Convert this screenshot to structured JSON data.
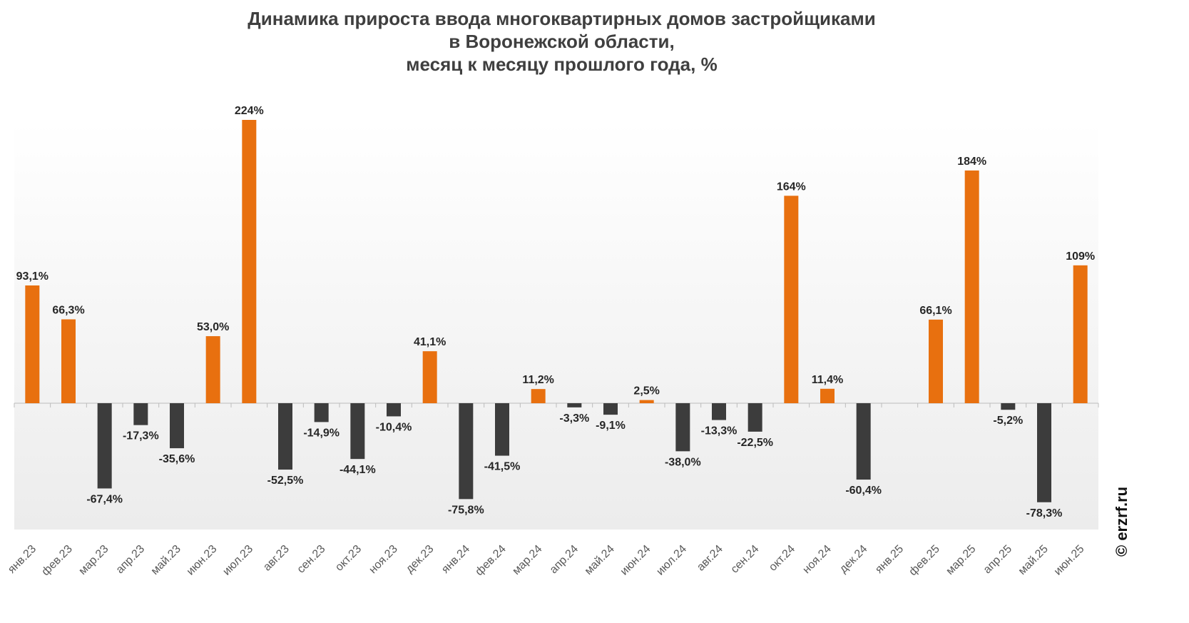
{
  "chart_data": {
    "type": "bar",
    "title_lines": [
      "Динамика прироста ввода многоквартирных домов застройщиками",
      "в Воронежской области,",
      "месяц к месяцу прошлого года, %"
    ],
    "categories": [
      "янв.23",
      "фев.23",
      "мар.23",
      "апр.23",
      "май.23",
      "июн.23",
      "июл.23",
      "авг.23",
      "сен.23",
      "окт.23",
      "ноя.23",
      "дек.23",
      "янв.24",
      "фев.24",
      "мар.24",
      "апр.24",
      "май.24",
      "июн.24",
      "июл.24",
      "авг.24",
      "сен.24",
      "окт.24",
      "ноя.24",
      "дек.24",
      "янв.25",
      "фев.25",
      "мар.25",
      "апр.25",
      "май.25",
      "июн.25"
    ],
    "values": [
      93.1,
      66.3,
      -67.4,
      -17.3,
      -35.6,
      53.0,
      224,
      -52.5,
      -14.9,
      -44.1,
      -10.4,
      41.1,
      -75.8,
      -41.5,
      11.2,
      -3.3,
      -9.1,
      2.5,
      -38.0,
      -13.3,
      -22.5,
      164,
      11.4,
      -60.4,
      null,
      66.1,
      184,
      -5.2,
      -78.3,
      109
    ],
    "data_labels": [
      "93,1%",
      "66,3%",
      "-67,4%",
      "-17,3%",
      "-35,6%",
      "53,0%",
      "224%",
      "-52,5%",
      "-14,9%",
      "-44,1%",
      "-10,4%",
      "41,1%",
      "-75,8%",
      "-41,5%",
      "11,2%",
      "-3,3%",
      "-9,1%",
      "2,5%",
      "-38,0%",
      "-13,3%",
      "-22,5%",
      "164%",
      "11,4%",
      "-60,4%",
      "",
      "66,1%",
      "184%",
      "-5,2%",
      "-78,3%",
      "109%"
    ],
    "xlabel": "",
    "ylabel": "",
    "ylim": [
      -100,
      250
    ],
    "grid": false,
    "legend": "none",
    "colors": {
      "positive": "#e8700f",
      "negative": "#3c3c3c",
      "label": "#262626",
      "axis": "#bcbcbc"
    }
  },
  "watermark": "© erzrf.ru"
}
